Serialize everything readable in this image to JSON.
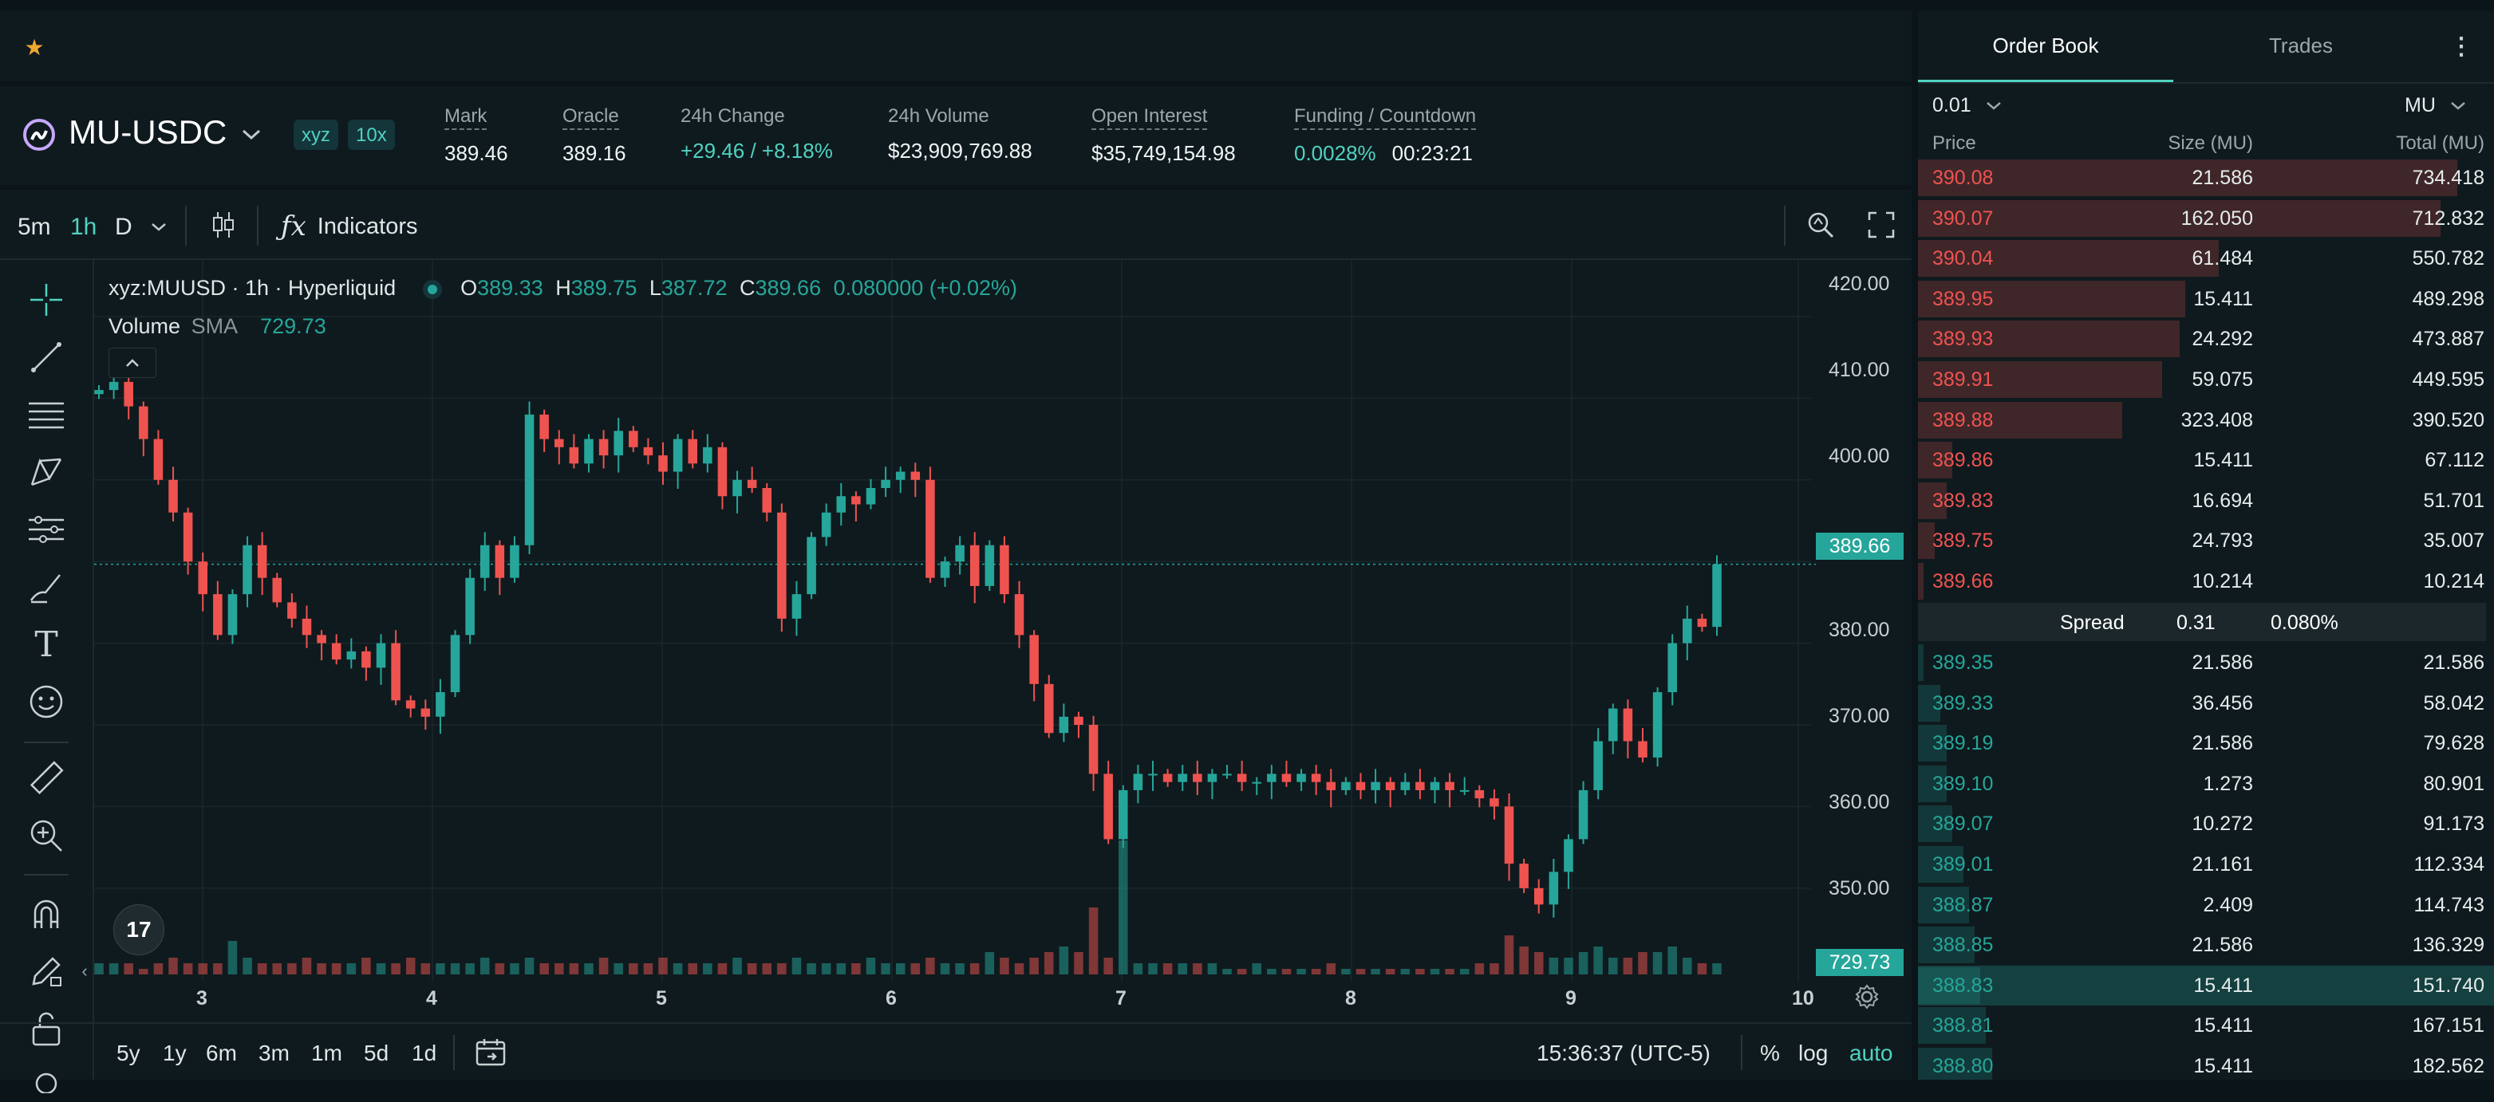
{
  "market": {
    "symbol": "MU-USDC",
    "badge_dex": "xyz",
    "badge_leverage": "10x",
    "stats": [
      {
        "label": "Mark",
        "value": "389.46"
      },
      {
        "label": "Oracle",
        "value": "389.16"
      },
      {
        "label": "24h Change",
        "value": "+29.46 / +8.18%"
      },
      {
        "label": "24h Volume",
        "value": "$23,909,769.88"
      },
      {
        "label": "Open Interest",
        "value": "$35,749,154.98"
      },
      {
        "label": "Funding / Countdown",
        "value": "0.0028%",
        "value2": "00:23:21"
      }
    ]
  },
  "toolbar": {
    "intervals": [
      "5m",
      "1h",
      "D"
    ],
    "active_interval": "1h",
    "indicators_label": "Indicators"
  },
  "legend": {
    "title": "xyz:MUUSD · 1h · Hyperliquid",
    "o_label": "O",
    "o": "389.33",
    "h_label": "H",
    "h": "389.75",
    "l_label": "L",
    "l": "387.72",
    "c_label": "C",
    "c": "389.66",
    "chg": "0.080000 (+0.02%)",
    "volume_label": "Volume",
    "sma_label": "SMA",
    "sma_value": "729.73"
  },
  "chart_data": {
    "type": "candlestick",
    "x_tick_labels": [
      "3",
      "4",
      "5",
      "6",
      "7",
      "8",
      "9",
      "10"
    ],
    "y_tick_labels": [
      "420.00",
      "410.00",
      "400.00",
      "390.00",
      "380.00",
      "370.00",
      "360.00",
      "350.00"
    ],
    "ylim": [
      341,
      424
    ],
    "last_price_label": "389.66",
    "volume_label": "729.73",
    "closes": [
      411,
      412,
      409,
      405,
      400,
      396,
      390,
      386,
      381,
      386,
      392,
      388,
      385,
      383,
      381,
      380,
      378,
      379,
      377,
      380,
      373,
      372,
      371,
      374,
      381,
      388,
      392,
      388,
      392,
      408,
      405,
      404,
      402,
      405,
      403,
      406,
      404,
      403,
      401,
      405,
      402,
      404,
      398,
      400,
      399,
      396,
      383,
      386,
      393,
      396,
      398,
      397,
      399,
      400,
      401,
      400,
      388,
      390,
      392,
      387,
      392,
      386,
      381,
      375,
      369,
      371,
      370,
      364,
      356,
      362,
      364,
      364,
      363,
      364,
      363,
      364,
      364,
      363,
      363,
      364,
      363,
      364,
      363,
      362,
      363,
      362,
      363,
      362,
      363,
      362,
      363,
      362,
      362,
      361,
      360,
      353,
      350,
      348,
      352,
      356,
      362,
      368,
      372,
      368,
      366,
      374,
      380,
      383,
      382,
      389.66
    ],
    "volumes": [
      2,
      2,
      2,
      1,
      2,
      3,
      2,
      2,
      2,
      6,
      3,
      2,
      2,
      2,
      3,
      2,
      2,
      2,
      3,
      2,
      2,
      3,
      2,
      2,
      2,
      2,
      3,
      2,
      2,
      3,
      2,
      2,
      2,
      2,
      3,
      2,
      2,
      2,
      3,
      2,
      2,
      2,
      2,
      3,
      2,
      2,
      2,
      3,
      2,
      2,
      2,
      2,
      3,
      2,
      2,
      2,
      3,
      2,
      2,
      2,
      4,
      3,
      2,
      3,
      4,
      5,
      4,
      12,
      3,
      24,
      2,
      2,
      2,
      2,
      2,
      2,
      1,
      1,
      2,
      1,
      1,
      1,
      1,
      2,
      1,
      1,
      1,
      1,
      1,
      1,
      1,
      1,
      1,
      2,
      2,
      7,
      5,
      4,
      3,
      3,
      4,
      5,
      3,
      3,
      4,
      4,
      5,
      3,
      2,
      2
    ],
    "colors": {
      "up": "#26a69a",
      "down": "#ef5350"
    }
  },
  "chart_footer": {
    "ranges": [
      "5y",
      "1y",
      "6m",
      "3m",
      "1m",
      "5d",
      "1d"
    ],
    "time": "15:36:37 (UTC-5)",
    "pct": "%",
    "log": "log",
    "auto": "auto"
  },
  "orderbook": {
    "tabs": [
      "Order Book",
      "Trades"
    ],
    "tick_size": "0.01",
    "unit": "MU",
    "headers": [
      "Price",
      "Size (MU)",
      "Total (MU)"
    ],
    "asks": [
      [
        "390.08",
        "21.586",
        "734.418",
        0.95
      ],
      [
        "390.07",
        "162.050",
        "712.832",
        0.92
      ],
      [
        "390.04",
        "61.484",
        "550.782",
        0.53
      ],
      [
        "389.95",
        "15.411",
        "489.298",
        0.47
      ],
      [
        "389.93",
        "24.292",
        "473.887",
        0.46
      ],
      [
        "389.91",
        "59.075",
        "449.595",
        0.43
      ],
      [
        "389.88",
        "323.408",
        "390.520",
        0.36
      ],
      [
        "389.86",
        "15.411",
        "67.112",
        0.06
      ],
      [
        "389.83",
        "16.694",
        "51.701",
        0.05
      ],
      [
        "389.75",
        "24.793",
        "35.007",
        0.03
      ],
      [
        "389.66",
        "10.214",
        "10.214",
        0.01
      ]
    ],
    "spread": {
      "label": "Spread",
      "value": "0.31",
      "pct": "0.080%"
    },
    "bids": [
      [
        "389.35",
        "21.586",
        "21.586",
        0.01
      ],
      [
        "389.33",
        "36.456",
        "58.042",
        0.04
      ],
      [
        "389.19",
        "21.586",
        "79.628",
        0.05
      ],
      [
        "389.10",
        "1.273",
        "80.901",
        0.05
      ],
      [
        "389.07",
        "10.272",
        "91.173",
        0.06
      ],
      [
        "389.01",
        "21.161",
        "112.334",
        0.08
      ],
      [
        "388.87",
        "2.409",
        "114.743",
        0.09
      ],
      [
        "388.85",
        "21.586",
        "136.329",
        0.1
      ],
      [
        "388.83",
        "15.411",
        "151.740",
        0.11
      ],
      [
        "388.81",
        "15.411",
        "167.151",
        0.12
      ],
      [
        "388.80",
        "15.411",
        "182.562",
        0.13
      ]
    ]
  },
  "colors": {
    "accent": "#50d2c1",
    "bid": "#26a69a",
    "ask": "#ef5350",
    "bg": "#0f1a1e"
  }
}
